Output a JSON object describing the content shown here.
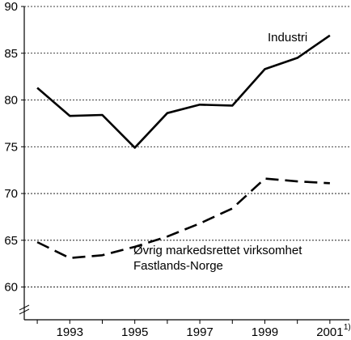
{
  "chart_data": {
    "type": "line",
    "title": "",
    "xlabel": "",
    "ylabel": "",
    "x": [
      1992,
      1993,
      1994,
      1995,
      1996,
      1997,
      1998,
      1999,
      2000,
      2001
    ],
    "xlim": [
      1991.6,
      2001.6
    ],
    "ylim": [
      56.5,
      90
    ],
    "y_ticks": [
      60,
      65,
      70,
      75,
      80,
      85,
      90
    ],
    "x_tick_labels": [
      "1993",
      "1995",
      "1997",
      "1999",
      "2001"
    ],
    "x_tick_values": [
      1993,
      1995,
      1997,
      1999,
      2001
    ],
    "x_label_footnote": {
      "year": 2001,
      "mark": "1)"
    },
    "grid": true,
    "axis_break": true,
    "series": [
      {
        "name": "Industri",
        "style": "solid",
        "color": "#000000",
        "values": [
          81.3,
          78.3,
          78.4,
          74.9,
          78.6,
          79.5,
          79.4,
          83.3,
          84.5,
          86.9
        ]
      },
      {
        "name_lines": [
          "Øvrig markedsrettet virksomhet",
          "Fastlands-Norge"
        ],
        "style": "dashed",
        "color": "#000000",
        "values": [
          64.8,
          63.1,
          63.4,
          64.3,
          65.4,
          66.8,
          68.4,
          71.6,
          71.3,
          71.1
        ]
      }
    ]
  }
}
